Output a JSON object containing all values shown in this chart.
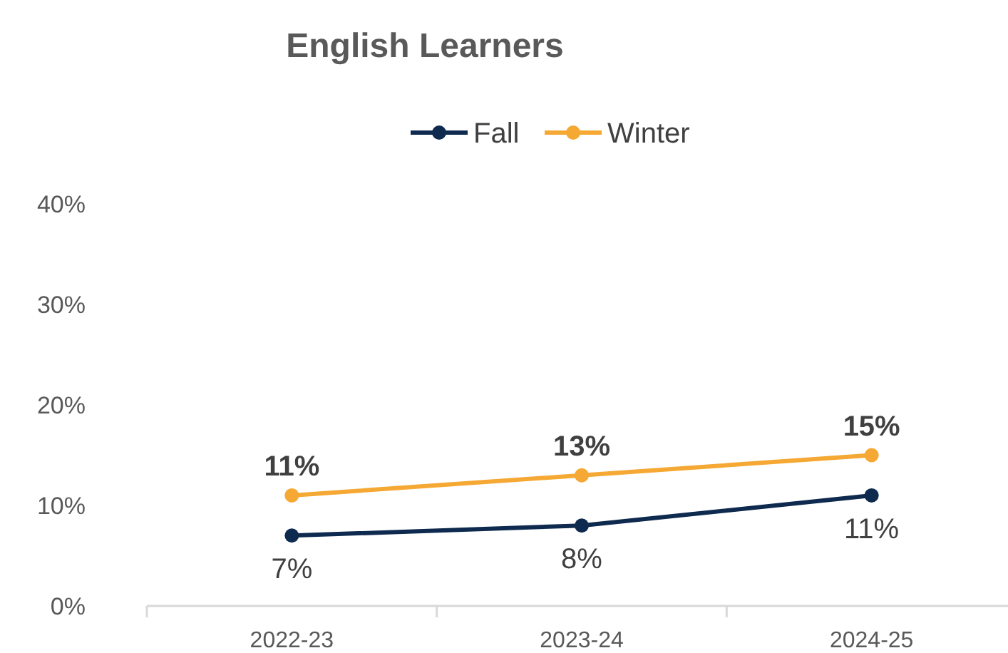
{
  "chart_data": {
    "type": "line",
    "title": "English Learners",
    "categories": [
      "2022-23",
      "2023-24",
      "2024-25"
    ],
    "series": [
      {
        "name": "Fall",
        "color": "#0f2a4f",
        "values": [
          7,
          8,
          11
        ],
        "value_labels": [
          "7%",
          "8%",
          "11%"
        ]
      },
      {
        "name": "Winter",
        "color": "#f5a833",
        "values": [
          11,
          13,
          15
        ],
        "value_labels": [
          "11%",
          "13%",
          "15%"
        ]
      }
    ],
    "ylim": [
      0,
      40
    ],
    "yticks": [
      {
        "value": 0,
        "label": "0%"
      },
      {
        "value": 10,
        "label": "10%"
      },
      {
        "value": 20,
        "label": "20%"
      },
      {
        "value": 30,
        "label": "30%"
      },
      {
        "value": 40,
        "label": "40%"
      }
    ],
    "grid": false,
    "legend": "top",
    "marker": "circle",
    "line_style": "solid"
  }
}
